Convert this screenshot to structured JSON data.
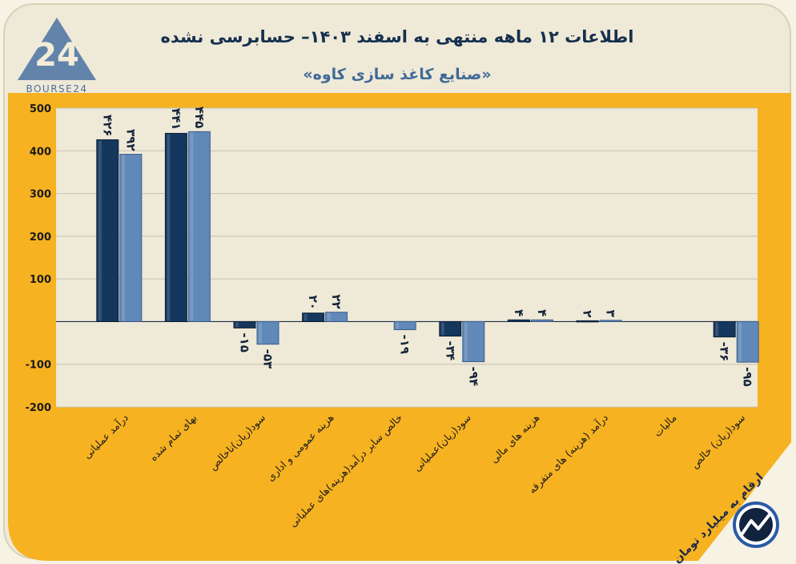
{
  "header": {
    "title": "اطلاعات ۱۲ ماهه منتهی به اسفند ۱۴۰۳– حسابرسی نشده",
    "subtitle": "«صنایع کاغذ سازی کاوه»",
    "logo_text": "BOURSE24",
    "logo_number": "24"
  },
  "footnote": "ارقام به میلیارد تومان",
  "colors": {
    "background": "#f6b221",
    "plot_area": "#efe9d7",
    "series_1": "#15365d",
    "series_2": "#6088b8",
    "grid": "#c7c2b4"
  },
  "chart_data": {
    "type": "bar",
    "categories": [
      "درآمد عملیاتی",
      "بهای تمام شده",
      "سود(زیان)ناخالص",
      "هزینه عمومی و اداری",
      "خالص سایر درآمد(هزینه)های عملیاتی",
      "سود(زیان)عملیاتی",
      "هزینه های مالی",
      "درآمد (هزینه) های متفرقه",
      "مالیات",
      "سود(زیان) خالص"
    ],
    "series": [
      {
        "values": [
          426,
          441,
          -15,
          20,
          null,
          -34,
          4,
          2,
          null,
          -36
        ]
      },
      {
        "values": [
          392,
          445,
          -53,
          22,
          -19,
          -94,
          4,
          3,
          null,
          -95
        ]
      }
    ],
    "value_labels": [
      [
        "۴۲۶",
        "۴۴۱",
        "-۱۵",
        "۲۰",
        "",
        "-۳۴",
        "۴",
        "۲",
        "",
        "-۳۶"
      ],
      [
        "۳۹۲",
        "۴۴۵",
        "-۵۳",
        "۲۲",
        "-۱۹",
        "-۹۴",
        "۴",
        "۳",
        "",
        "-۹۵"
      ]
    ],
    "yticks": [
      500,
      400,
      300,
      200,
      100,
      0,
      -100,
      -200
    ],
    "ytick_labels": [
      "500",
      "400",
      "300",
      "200",
      "100",
      "",
      "-100",
      "-200"
    ],
    "ylim": [
      -200,
      500
    ],
    "grid": true,
    "legend": "none"
  }
}
